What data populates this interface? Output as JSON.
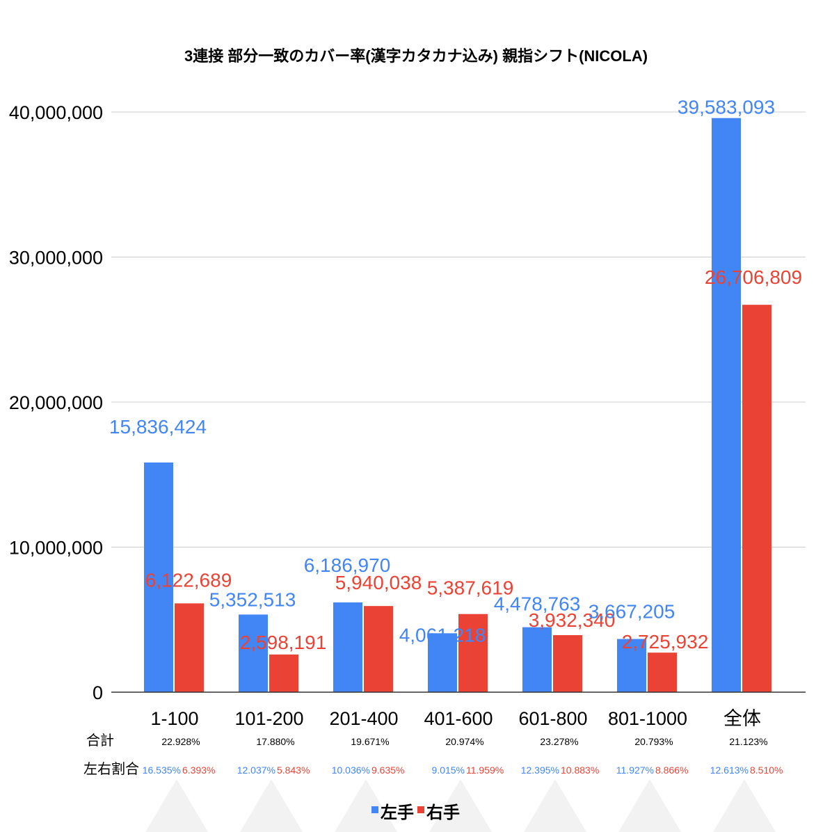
{
  "chart_data": {
    "type": "bar",
    "title": "3連接 部分一致のカバー率(漢字カタカナ込み) 親指シフト(NICOLA)",
    "categories": [
      "1-100",
      "101-200",
      "201-400",
      "401-600",
      "601-800",
      "801-1000",
      "全体"
    ],
    "series": [
      {
        "name": "左手",
        "color": "#4285f4",
        "values": [
          15836424,
          5352513,
          6186970,
          4061218,
          4478763,
          3667205,
          39583093
        ],
        "labels": [
          "15,836,424",
          "5,352,513",
          "6,186,970",
          "4,061,218",
          "4,478,763",
          "3,667,205",
          "39,583,093"
        ]
      },
      {
        "name": "右手",
        "color": "#ea4335",
        "values": [
          6122689,
          2598191,
          5940038,
          5387619,
          3932340,
          2725932,
          26706809
        ],
        "labels": [
          "6,122,689",
          "2,598,191",
          "5,940,038",
          "5,387,619",
          "3,932,340",
          "2,725,932",
          "26,706,809"
        ]
      }
    ],
    "ylim": [
      0,
      40000000
    ],
    "yticks": [
      0,
      10000000,
      20000000,
      30000000,
      40000000
    ],
    "ytick_labels": [
      "0",
      "10,000,000",
      "20,000,000",
      "30,000,000",
      "40,000,000"
    ],
    "grid": true,
    "legend": "bottom",
    "xlabel": "",
    "ylabel": ""
  },
  "table": {
    "total_label": "合計",
    "ratio_label": "左右割合",
    "totals": [
      "22.928%",
      "17.880%",
      "19.671%",
      "20.974%",
      "23.278%",
      "20.793%",
      "21.123%"
    ],
    "left_pct": [
      "16.535%",
      "12.037%",
      "10.036%",
      "9.015%",
      "12.395%",
      "11.927%",
      "12.613%"
    ],
    "right_pct": [
      "6.393%",
      "5.843%",
      "9.635%",
      "11.959%",
      "10.883%",
      "8.866%",
      "8.510%"
    ]
  }
}
